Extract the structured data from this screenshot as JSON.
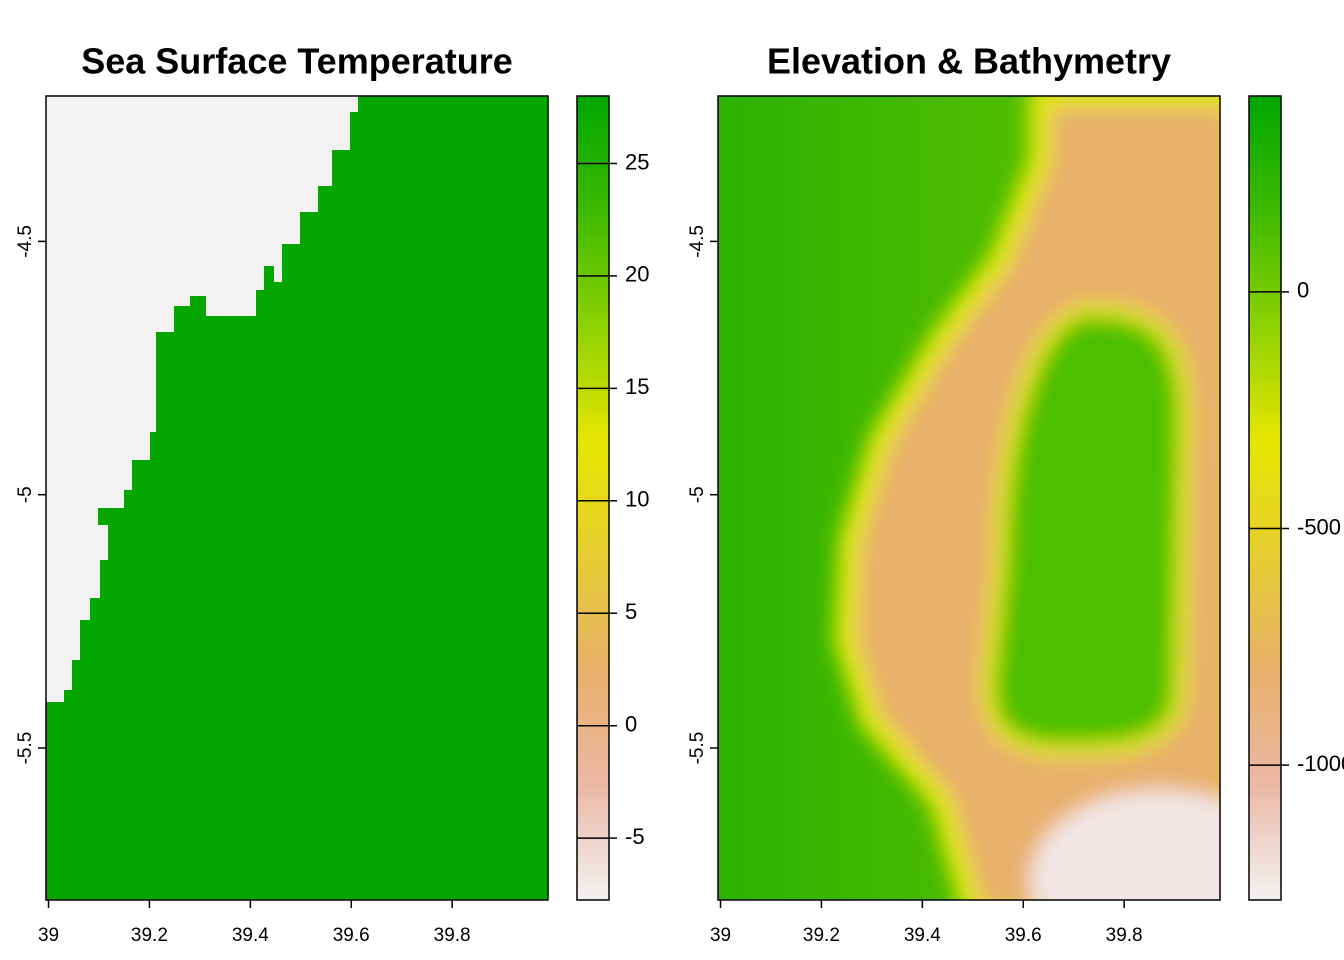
{
  "chart_data": [
    {
      "type": "raster",
      "title": "Sea Surface Temperature",
      "xlim": [
        38.995,
        39.99
      ],
      "xticks": [
        39,
        39.2,
        39.4,
        39.6,
        39.8
      ],
      "ylim": [
        -5.8,
        -4.213
      ],
      "yticks": [
        -4.5,
        -5,
        -5.5
      ],
      "colorbar": {
        "lim": [
          -7.75,
          28
        ],
        "ticks": [
          25,
          20,
          15,
          10,
          5,
          0,
          -5
        ],
        "colors": [
          "#F2F2F2",
          "#ECB8A5",
          "#E8B06A",
          "#E6CD30",
          "#E6E600",
          "#8DD100",
          "#3DBA00",
          "#00A600"
        ]
      }
    },
    {
      "type": "raster",
      "title": "Elevation & Bathymetry",
      "xlim": [
        38.995,
        39.99
      ],
      "xticks": [
        39,
        39.2,
        39.4,
        39.6,
        39.8
      ],
      "ylim": [
        -5.8,
        -4.213
      ],
      "yticks": [
        -4.5,
        -5,
        -5.5
      ],
      "colorbar": {
        "lim": [
          -1285,
          414
        ],
        "ticks": [
          0,
          -500,
          -1000
        ],
        "colors": [
          "#F2F2F2",
          "#ECB8A5",
          "#E8B06A",
          "#E6CD30",
          "#E6E600",
          "#8DD100",
          "#3DBA00",
          "#00A600"
        ]
      }
    }
  ]
}
